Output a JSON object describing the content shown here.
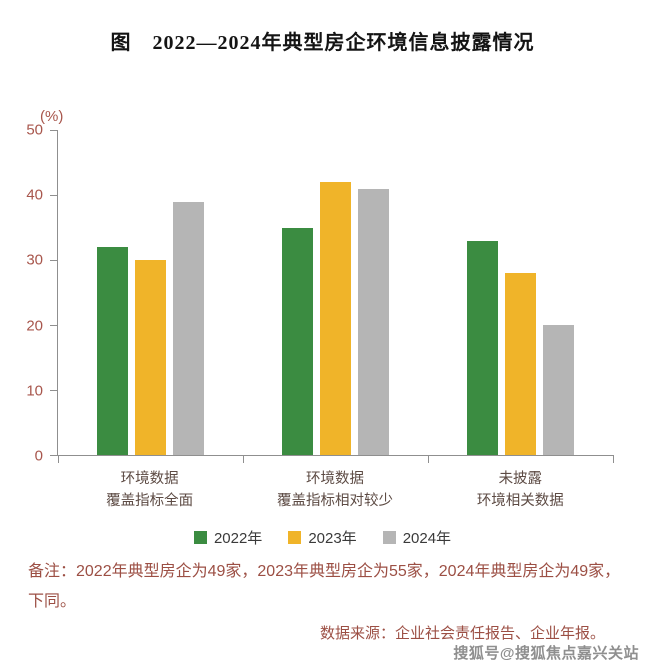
{
  "title": "图　2022—2024年典型房企环境信息披露情况",
  "chart_data": {
    "type": "bar",
    "unit_label": "(%)",
    "categories": [
      [
        "环境数据",
        "覆盖指标全面"
      ],
      [
        "环境数据",
        "覆盖指标相对较少"
      ],
      [
        "未披露",
        "环境相关数据"
      ]
    ],
    "series": [
      {
        "name": "2022年",
        "color": "#3b8c41",
        "values": [
          32,
          35,
          33
        ]
      },
      {
        "name": "2023年",
        "color": "#f0b429",
        "values": [
          30,
          42,
          28
        ]
      },
      {
        "name": "2024年",
        "color": "#b5b5b5",
        "values": [
          39,
          41,
          20
        ]
      }
    ],
    "ylim": [
      0,
      50
    ],
    "yticks": [
      0,
      10,
      20,
      30,
      40,
      50
    ],
    "grid": false,
    "legend_position": "bottom"
  },
  "notes": "备注：2022年典型房企为49家，2023年典型房企为55家，2024年典型房企为49家，下同。",
  "source": "数据来源：企业社会责任报告、企业年报。",
  "watermark": "搜狐号@搜狐焦点嘉兴关站",
  "colors": {
    "axis_line": "#8f8f8f",
    "axis_text": "#a8564c",
    "note_text": "#9c4f44",
    "category_text": "#5d4b44"
  }
}
